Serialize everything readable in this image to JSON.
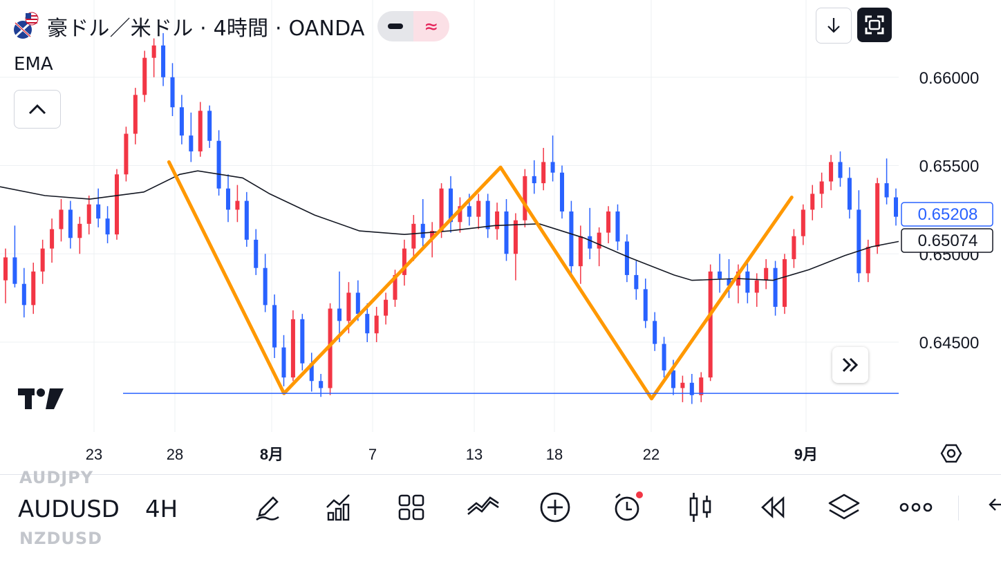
{
  "header": {
    "title": "豪ドル／米ドル · 4時間 · OANDA",
    "mode_left_icon": "minus-icon",
    "mode_right_icon": "approx-icon",
    "indicator_label": "EMA"
  },
  "colors": {
    "bull": "#f23645",
    "bear": "#2962ff",
    "ema": "#131722",
    "zigzag": "#ff9800",
    "support": "#2962ff",
    "grid": "#eef0f3"
  },
  "chart_data": {
    "type": "candlestick",
    "symbol": "AUDUSD",
    "interval": "4H",
    "yticks": [
      0.645,
      0.65,
      0.655,
      0.66
    ],
    "ytick_labels": [
      "0.64500",
      "0.65000",
      "0.65500",
      "0.66000"
    ],
    "ylim": [
      0.6405,
      0.6632
    ],
    "xticks": [
      "23",
      "28",
      "8月",
      "7",
      "13",
      "18",
      "22",
      "9月"
    ],
    "xticks_bold": [
      false,
      false,
      true,
      false,
      false,
      false,
      false,
      true
    ],
    "last_price": "0.65208",
    "ema_value": "0.65074",
    "support_level": 0.6421,
    "ema_points": [
      [
        0,
        0.6538
      ],
      [
        0.05,
        0.6533
      ],
      [
        0.1,
        0.6531
      ],
      [
        0.16,
        0.6535
      ],
      [
        0.2,
        0.6545
      ],
      [
        0.22,
        0.6547
      ],
      [
        0.27,
        0.6543
      ],
      [
        0.3,
        0.6534
      ],
      [
        0.35,
        0.6522
      ],
      [
        0.4,
        0.6513
      ],
      [
        0.45,
        0.6511
      ],
      [
        0.5,
        0.6513
      ],
      [
        0.55,
        0.6516
      ],
      [
        0.6,
        0.6517
      ],
      [
        0.65,
        0.6509
      ],
      [
        0.7,
        0.6498
      ],
      [
        0.75,
        0.6488
      ],
      [
        0.77,
        0.6485
      ],
      [
        0.82,
        0.6486
      ],
      [
        0.86,
        0.6485
      ],
      [
        0.9,
        0.6491
      ],
      [
        0.94,
        0.6499
      ],
      [
        0.97,
        0.6504
      ],
      [
        1,
        0.6507
      ]
    ],
    "zigzag": [
      [
        0.188,
        0.6552
      ],
      [
        0.316,
        0.6421
      ],
      [
        0.557,
        0.6549
      ],
      [
        0.725,
        0.6418
      ],
      [
        0.881,
        0.6532
      ]
    ],
    "candles": [
      [
        0.6485,
        0.6503,
        0.6472,
        0.6498
      ],
      [
        0.6498,
        0.6516,
        0.6481,
        0.6483
      ],
      [
        0.6483,
        0.6492,
        0.6464,
        0.6471
      ],
      [
        0.6471,
        0.6495,
        0.6466,
        0.649
      ],
      [
        0.649,
        0.6508,
        0.6483,
        0.6503
      ],
      [
        0.6503,
        0.652,
        0.6495,
        0.6514
      ],
      [
        0.6514,
        0.6531,
        0.6507,
        0.6525
      ],
      [
        0.6525,
        0.653,
        0.6503,
        0.6509
      ],
      [
        0.6509,
        0.6521,
        0.65,
        0.6517
      ],
      [
        0.6517,
        0.6533,
        0.6511,
        0.6528
      ],
      [
        0.6528,
        0.6537,
        0.6515,
        0.652
      ],
      [
        0.652,
        0.6527,
        0.6506,
        0.6511
      ],
      [
        0.6511,
        0.6548,
        0.6508,
        0.6545
      ],
      [
        0.6545,
        0.6572,
        0.6541,
        0.6568
      ],
      [
        0.6568,
        0.6594,
        0.6562,
        0.659
      ],
      [
        0.659,
        0.6615,
        0.6586,
        0.6611
      ],
      [
        0.6611,
        0.6622,
        0.66,
        0.6618
      ],
      [
        0.6618,
        0.6625,
        0.6595,
        0.66
      ],
      [
        0.66,
        0.6608,
        0.6578,
        0.6583
      ],
      [
        0.6583,
        0.659,
        0.6562,
        0.6567
      ],
      [
        0.6567,
        0.658,
        0.6552,
        0.6558
      ],
      [
        0.6558,
        0.6586,
        0.6555,
        0.6581
      ],
      [
        0.6581,
        0.6584,
        0.656,
        0.6564
      ],
      [
        0.6564,
        0.657,
        0.6533,
        0.6537
      ],
      [
        0.6537,
        0.6545,
        0.6518,
        0.6525
      ],
      [
        0.6525,
        0.6539,
        0.6518,
        0.653
      ],
      [
        0.653,
        0.6535,
        0.6504,
        0.6508
      ],
      [
        0.6508,
        0.6514,
        0.6488,
        0.6492
      ],
      [
        0.6492,
        0.65,
        0.6467,
        0.6471
      ],
      [
        0.6471,
        0.6477,
        0.6441,
        0.6447
      ],
      [
        0.6447,
        0.6454,
        0.6425,
        0.643
      ],
      [
        0.643,
        0.6468,
        0.6428,
        0.6463
      ],
      [
        0.6463,
        0.6466,
        0.6434,
        0.6438
      ],
      [
        0.6438,
        0.6444,
        0.6422,
        0.6428
      ],
      [
        0.6428,
        0.6432,
        0.6419,
        0.6424
      ],
      [
        0.6424,
        0.6472,
        0.642,
        0.6469
      ],
      [
        0.6469,
        0.649,
        0.645,
        0.6462
      ],
      [
        0.6462,
        0.6484,
        0.6455,
        0.6478
      ],
      [
        0.6478,
        0.6485,
        0.6462,
        0.6466
      ],
      [
        0.6466,
        0.6472,
        0.645,
        0.6455
      ],
      [
        0.6455,
        0.647,
        0.645,
        0.6465
      ],
      [
        0.6465,
        0.6478,
        0.646,
        0.6474
      ],
      [
        0.6474,
        0.6491,
        0.647,
        0.6488
      ],
      [
        0.6488,
        0.6508,
        0.6482,
        0.6503
      ],
      [
        0.6503,
        0.6522,
        0.6496,
        0.6517
      ],
      [
        0.6517,
        0.6531,
        0.6504,
        0.6509
      ],
      [
        0.6509,
        0.6518,
        0.6498,
        0.6513
      ],
      [
        0.6513,
        0.654,
        0.6509,
        0.6537
      ],
      [
        0.6537,
        0.6544,
        0.6512,
        0.6518
      ],
      [
        0.6518,
        0.6532,
        0.6512,
        0.6527
      ],
      [
        0.6527,
        0.6534,
        0.6516,
        0.6521
      ],
      [
        0.6521,
        0.6534,
        0.6514,
        0.653
      ],
      [
        0.653,
        0.6534,
        0.6509,
        0.6514
      ],
      [
        0.6514,
        0.6529,
        0.6508,
        0.6524
      ],
      [
        0.6524,
        0.6531,
        0.6496,
        0.65
      ],
      [
        0.65,
        0.6523,
        0.6485,
        0.6519
      ],
      [
        0.6519,
        0.6548,
        0.6515,
        0.6544
      ],
      [
        0.6544,
        0.6553,
        0.6534,
        0.654
      ],
      [
        0.654,
        0.656,
        0.6536,
        0.6552
      ],
      [
        0.6552,
        0.6567,
        0.6541,
        0.6546
      ],
      [
        0.6546,
        0.655,
        0.652,
        0.6524
      ],
      [
        0.6524,
        0.653,
        0.6488,
        0.6493
      ],
      [
        0.6493,
        0.6516,
        0.6483,
        0.651
      ],
      [
        0.651,
        0.6526,
        0.6497,
        0.6503
      ],
      [
        0.6503,
        0.6515,
        0.6493,
        0.6512
      ],
      [
        0.6512,
        0.6527,
        0.6506,
        0.6524
      ],
      [
        0.6524,
        0.6528,
        0.6502,
        0.6507
      ],
      [
        0.6507,
        0.6511,
        0.6484,
        0.6488
      ],
      [
        0.6488,
        0.6496,
        0.6474,
        0.648
      ],
      [
        0.648,
        0.6486,
        0.6458,
        0.6462
      ],
      [
        0.6462,
        0.6467,
        0.6445,
        0.6449
      ],
      [
        0.6449,
        0.6453,
        0.643,
        0.6434
      ],
      [
        0.6434,
        0.644,
        0.642,
        0.6424
      ],
      [
        0.6424,
        0.6431,
        0.6416,
        0.6427
      ],
      [
        0.6427,
        0.6432,
        0.6415,
        0.642
      ],
      [
        0.642,
        0.6433,
        0.6416,
        0.643
      ],
      [
        0.643,
        0.6494,
        0.6428,
        0.649
      ],
      [
        0.649,
        0.65,
        0.6478,
        0.6486
      ],
      [
        0.6486,
        0.6497,
        0.6475,
        0.6482
      ],
      [
        0.6482,
        0.6494,
        0.6472,
        0.649
      ],
      [
        0.649,
        0.6496,
        0.6472,
        0.6478
      ],
      [
        0.6478,
        0.6489,
        0.647,
        0.6485
      ],
      [
        0.6485,
        0.6497,
        0.648,
        0.6492
      ],
      [
        0.6492,
        0.6496,
        0.6465,
        0.647
      ],
      [
        0.647,
        0.65,
        0.6466,
        0.6497
      ],
      [
        0.6497,
        0.6514,
        0.6492,
        0.651
      ],
      [
        0.651,
        0.6528,
        0.6505,
        0.6525
      ],
      [
        0.6525,
        0.6539,
        0.6519,
        0.6534
      ],
      [
        0.6534,
        0.6546,
        0.6526,
        0.6541
      ],
      [
        0.6541,
        0.6556,
        0.6536,
        0.6552
      ],
      [
        0.6552,
        0.6558,
        0.6538,
        0.6543
      ],
      [
        0.6543,
        0.6549,
        0.652,
        0.6525
      ],
      [
        0.6525,
        0.6536,
        0.6484,
        0.6489
      ],
      [
        0.6489,
        0.6508,
        0.6484,
        0.6504
      ],
      [
        0.6504,
        0.6543,
        0.65,
        0.654
      ],
      [
        0.654,
        0.6554,
        0.6528,
        0.6532
      ],
      [
        0.6532,
        0.6537,
        0.6516,
        0.6521
      ]
    ]
  },
  "buttons": {
    "collapse_icon": "chevron-up-icon",
    "download_icon": "arrow-down-icon",
    "fullscreen_icon": "fullscreen-icon",
    "scroll_forward_icon": "double-chevron-right-icon",
    "settings_icon": "settings-icon",
    "logo": "tradingview-logo"
  },
  "toolbar": {
    "symbol_prev": "AUDJPY",
    "symbol": "AUDUSD",
    "symbol_next": "NZDUSD",
    "timeframe": "4H",
    "tools": [
      "pen-icon",
      "chart-indicators-icon",
      "layouts-icon",
      "drawing-trend-icon",
      "add-icon",
      "alert-icon",
      "candle-style-icon",
      "replay-icon",
      "layers-icon",
      "more-icon"
    ],
    "back_icon": "arrow-left-icon"
  }
}
